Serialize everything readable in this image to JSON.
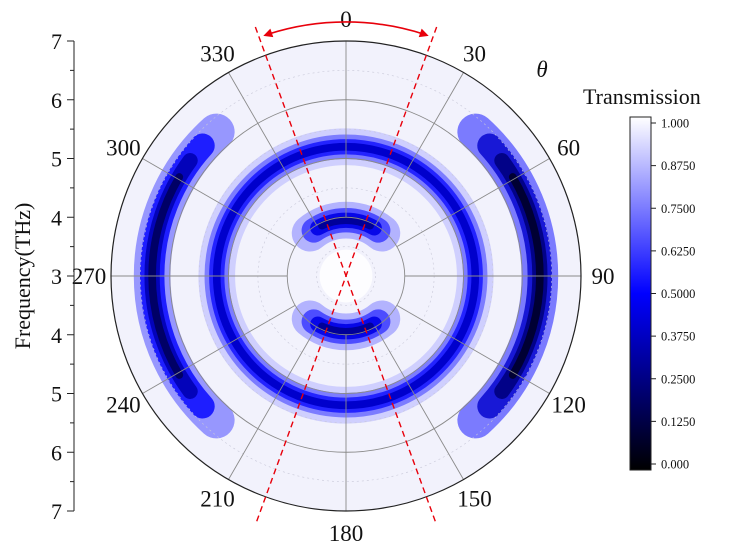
{
  "chart_data": {
    "type": "heatmap",
    "subtype": "polar-contour",
    "title": "",
    "colorbar": {
      "title": "Transmission",
      "ticks": [
        "1.000",
        "0.8750",
        "0.7500",
        "0.6250",
        "0.5000",
        "0.3750",
        "0.2500",
        "0.1250",
        "0.000"
      ],
      "range": [
        0,
        1
      ],
      "colors": {
        "low": "#000000",
        "mid": "#0000ff",
        "high": "#ffffff"
      }
    },
    "radial_axis": {
      "label": "Frequency(THz)",
      "ticks_top": [
        "7",
        "6",
        "5",
        "4",
        "3"
      ],
      "ticks_bottom": [
        "4",
        "5",
        "6",
        "7"
      ],
      "range_thz": [
        3,
        7
      ]
    },
    "angular_axis": {
      "label": "θ",
      "unit": "deg",
      "ticks": [
        "0",
        "30",
        "60",
        "90",
        "120",
        "150",
        "180",
        "210",
        "240",
        "270",
        "300",
        "330"
      ]
    },
    "grid": true,
    "annotations": {
      "dashed_lines_deg": [
        -20,
        20
      ],
      "dashed_line_color": "#e8000b",
      "arc_arrow_color": "#e8000b"
    },
    "features": [
      {
        "type": "ring",
        "radius_thz": 5.2,
        "transmission_min": 0.4
      },
      {
        "type": "arc_band",
        "radius_thz": 3.95,
        "center_deg": 0,
        "half_width_deg": 40,
        "transmission_min": 0.3
      },
      {
        "type": "arc_band",
        "radius_thz": 3.95,
        "center_deg": 180,
        "half_width_deg": 40,
        "transmission_min": 0.3
      },
      {
        "type": "arc_band",
        "radius_thz": 6.3,
        "center_deg": 90,
        "half_width_deg": 48,
        "transmission_min": 0.1
      },
      {
        "type": "arc_band",
        "radius_thz": 6.3,
        "center_deg": 270,
        "half_width_deg": 48,
        "transmission_min": 0.2
      }
    ]
  }
}
